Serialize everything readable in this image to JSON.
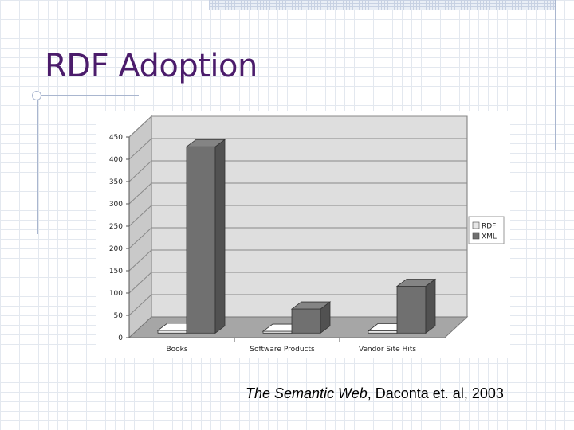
{
  "slide": {
    "title": "RDF Adoption",
    "citation_italic": "The Semantic Web",
    "citation_rest": ", Daconta et. al, 2003"
  },
  "chart_data": {
    "type": "bar",
    "categories": [
      "Books",
      "Software Products",
      "Vendor Site Hits"
    ],
    "series": [
      {
        "name": "RDF",
        "values": [
          6,
          4,
          5
        ],
        "color": "#e6e6e6"
      },
      {
        "name": "XML",
        "values": [
          418,
          54,
          105
        ],
        "color": "#707070"
      }
    ],
    "ylim": [
      0,
      450
    ],
    "yticks": [
      0,
      50,
      100,
      150,
      200,
      250,
      300,
      350,
      400,
      450
    ],
    "ytick_labels": [
      "0",
      "50",
      "100",
      "150",
      "200",
      "250",
      "300",
      "350",
      "400",
      "450"
    ],
    "grid": true,
    "three_d": true,
    "legend_position": "right"
  }
}
